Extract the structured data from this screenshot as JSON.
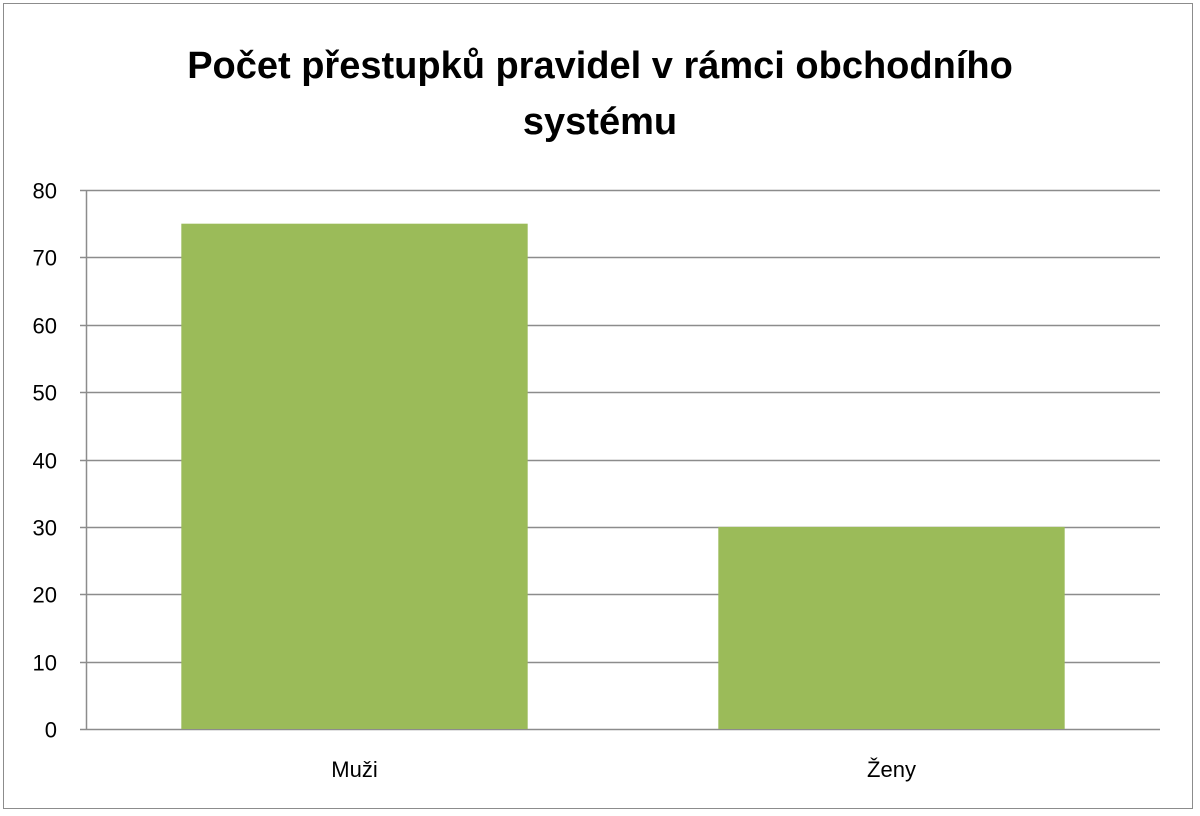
{
  "chart_data": {
    "type": "bar",
    "title": "Počet přestupků  pravidel v rámci obchodního\nsystému",
    "categories": [
      "Muži",
      "Ženy"
    ],
    "values": [
      75,
      30
    ],
    "ylim": [
      0,
      80
    ],
    "yticks": [
      0,
      10,
      20,
      30,
      40,
      50,
      60,
      70,
      80
    ],
    "xlabel": "",
    "ylabel": "",
    "grid": true,
    "legend": "none",
    "colors": {
      "bar": "#9bbb59",
      "grid": "#8c8c8c",
      "border": "#8c8c8c"
    }
  }
}
